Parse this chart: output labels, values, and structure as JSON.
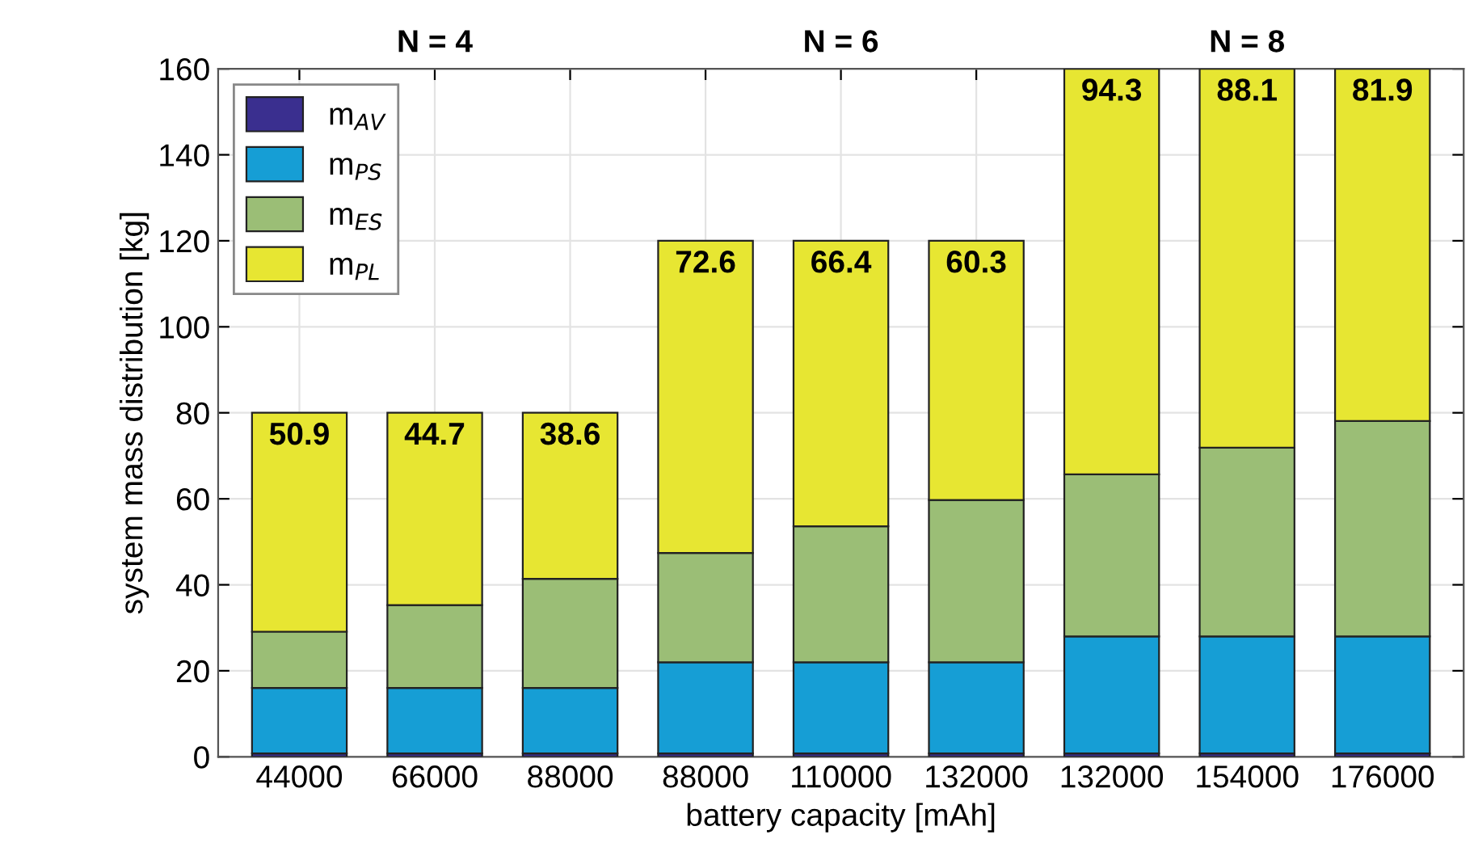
{
  "chart_data": {
    "type": "bar",
    "stacked": true,
    "xlabel": "battery capacity [mAh]",
    "ylabel": "system mass distribution [kg]",
    "categories": [
      "44000",
      "66000",
      "88000",
      "88000",
      "110000",
      "132000",
      "132000",
      "154000",
      "176000"
    ],
    "series": [
      {
        "name": "m$_{AV}$",
        "color": "#3a2f8f",
        "values": [
          0.8,
          0.8,
          0.8,
          0.8,
          0.8,
          0.8,
          0.8,
          0.8,
          0.8
        ]
      },
      {
        "name": "m$_{PS}$",
        "color": "#169ed5",
        "values": [
          15.2,
          15.2,
          15.2,
          21.2,
          21.2,
          21.2,
          27.2,
          27.2,
          27.2
        ]
      },
      {
        "name": "m$_{ES}$",
        "color": "#9bbe76",
        "values": [
          13.1,
          19.3,
          25.4,
          25.4,
          31.6,
          37.7,
          37.7,
          43.9,
          50.1
        ]
      },
      {
        "name": "m$_{PL}$",
        "color": "#e7e632",
        "values": [
          50.9,
          44.7,
          38.6,
          72.6,
          66.4,
          60.3,
          94.3,
          88.1,
          81.9
        ],
        "value_labels": [
          "50.9",
          "44.7",
          "38.6",
          "72.6",
          "66.4",
          "60.3",
          "94.3",
          "88.1",
          "81.9"
        ]
      }
    ],
    "annotations": [
      "N = 4",
      "N = 6",
      "N = 8"
    ],
    "ylim": [
      0,
      160
    ],
    "yticks": [
      0,
      20,
      40,
      60,
      80,
      100,
      120,
      140,
      160
    ],
    "grid": true,
    "legend": "top left"
  }
}
